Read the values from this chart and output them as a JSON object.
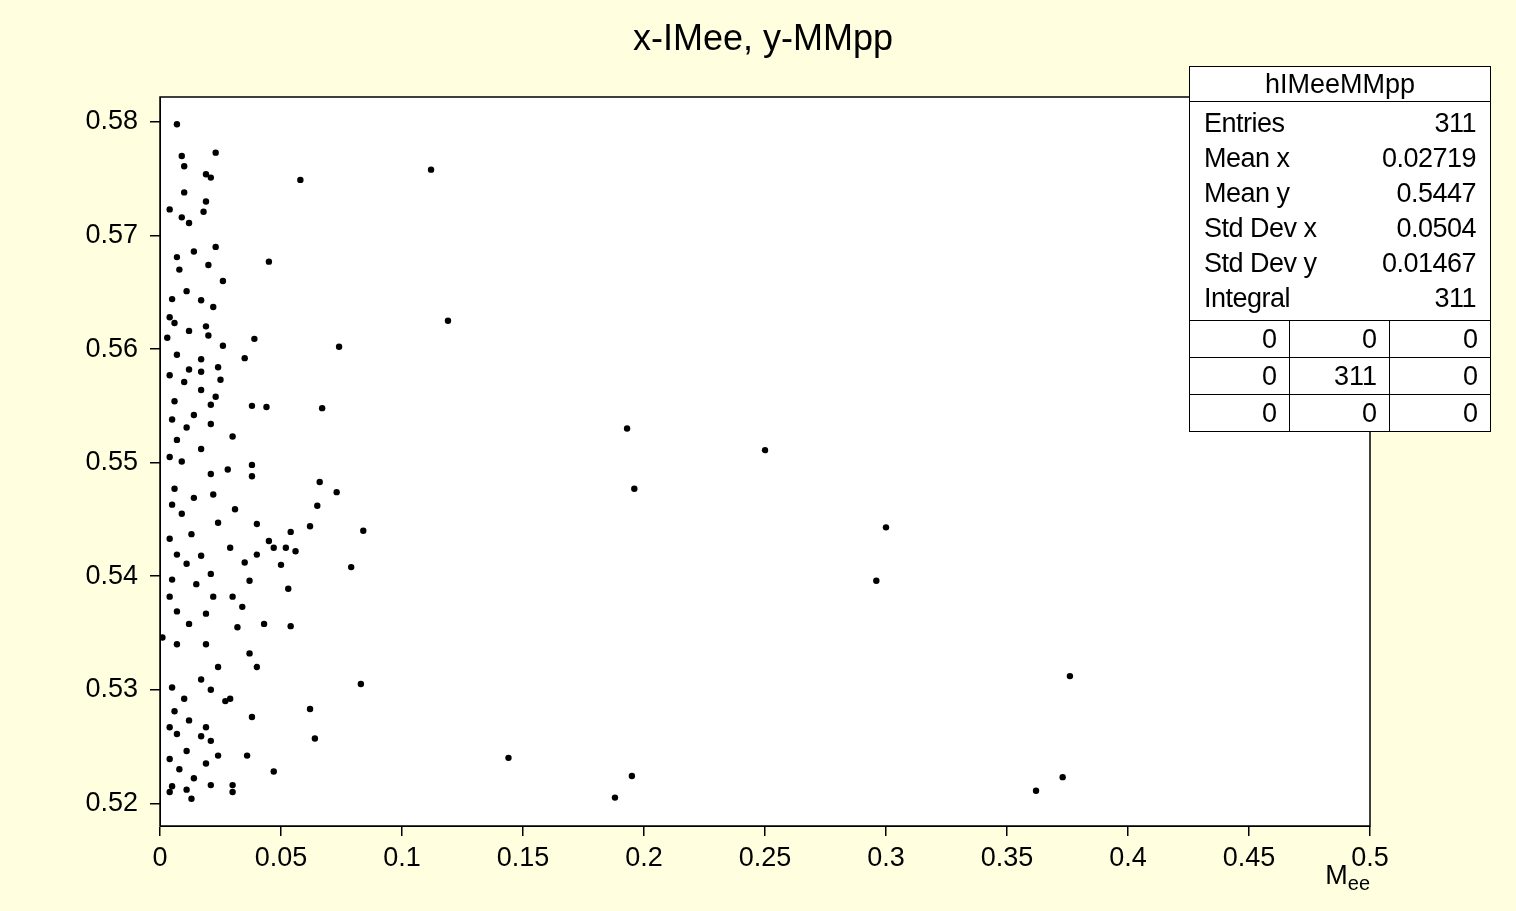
{
  "chart_data": {
    "type": "scatter",
    "title": "x-IMee, y-MMpp",
    "xlabel": "M$_{ee}$",
    "xlim": [
      0,
      0.5
    ],
    "xticks": [
      0,
      0.05,
      0.1,
      0.15,
      0.2,
      0.25,
      0.3,
      0.35,
      0.4,
      0.45,
      0.5
    ],
    "ylim": [
      0.518,
      0.5822
    ],
    "yticks": [
      0.52,
      0.53,
      0.54,
      0.55,
      0.56,
      0.57,
      0.58
    ],
    "grid": false,
    "legend": false,
    "marker": "circle",
    "annotations": [
      "hIMeeMMpp",
      "Entries",
      "311",
      "Mean x",
      "0.02719",
      "Mean y",
      "0.5447",
      "Std Dev x",
      "0.0504",
      "Std Dev y",
      "0.01467",
      "Integral",
      "311",
      "0",
      "0",
      "0",
      "0",
      "311",
      "0",
      "0",
      "0",
      "0"
    ],
    "series": [
      {
        "color": "#000000",
        "x": [
          0.007,
          0.023,
          0.009,
          0.01,
          0.019,
          0.021,
          0.058,
          0.112,
          0.01,
          0.019,
          0.004,
          0.018,
          0.009,
          0.012,
          0.023,
          0.007,
          0.014,
          0.02,
          0.045,
          0.008,
          0.026,
          0.011,
          0.005,
          0.017,
          0.022,
          0.119,
          0.004,
          0.006,
          0.019,
          0.012,
          0.02,
          0.003,
          0.039,
          0.026,
          0.074,
          0.007,
          0.035,
          0.017,
          0.012,
          0.024,
          0.004,
          0.017,
          0.025,
          0.01,
          0.017,
          0.023,
          0.006,
          0.021,
          0.038,
          0.044,
          0.067,
          0.014,
          0.005,
          0.021,
          0.011,
          0.03,
          0.193,
          0.25,
          0.007,
          0.017,
          0.004,
          0.009,
          0.038,
          0.028,
          0.038,
          0.021,
          0.066,
          0.006,
          0.022,
          0.073,
          0.196,
          0.014,
          0.031,
          0.065,
          0.005,
          0.009,
          0.024,
          0.04,
          0.054,
          0.062,
          0.084,
          0.3,
          0.004,
          0.013,
          0.045,
          0.047,
          0.052,
          0.056,
          0.029,
          0.007,
          0.017,
          0.04,
          0.011,
          0.035,
          0.05,
          0.021,
          0.079,
          0.005,
          0.015,
          0.296,
          0.037,
          0.053,
          0.03,
          0.004,
          0.022,
          0.034,
          0.007,
          0.012,
          0.019,
          0.032,
          0.043,
          0.054,
          0.001,
          0.007,
          0.019,
          0.037,
          0.04,
          0.024,
          0.083,
          0.005,
          0.017,
          0.376,
          0.021,
          0.01,
          0.027,
          0.029,
          0.006,
          0.062,
          0.038,
          0.012,
          0.004,
          0.019,
          0.064,
          0.007,
          0.017,
          0.021,
          0.011,
          0.036,
          0.004,
          0.024,
          0.019,
          0.144,
          0.008,
          0.047,
          0.014,
          0.195,
          0.373,
          0.005,
          0.021,
          0.03,
          0.011,
          0.03,
          0.004,
          0.013,
          0.188,
          0.362
        ],
        "values": [
          0.5798,
          0.5773,
          0.577,
          0.5761,
          0.5754,
          0.5751,
          0.5749,
          0.5758,
          0.5738,
          0.573,
          0.5723,
          0.5721,
          0.5716,
          0.5711,
          0.569,
          0.5681,
          0.5686,
          0.5674,
          0.5677,
          0.567,
          0.566,
          0.5651,
          0.5644,
          0.5643,
          0.5637,
          0.5625,
          0.5628,
          0.5623,
          0.562,
          0.5616,
          0.5612,
          0.561,
          0.5609,
          0.5603,
          0.5602,
          0.5595,
          0.5592,
          0.5591,
          0.5582,
          0.5584,
          0.5577,
          0.558,
          0.5573,
          0.5571,
          0.5564,
          0.5558,
          0.5554,
          0.5551,
          0.555,
          0.5549,
          0.5548,
          0.5542,
          0.5538,
          0.5534,
          0.5531,
          0.5523,
          0.553,
          0.5511,
          0.552,
          0.5512,
          0.5505,
          0.5501,
          0.5498,
          0.5494,
          0.5488,
          0.549,
          0.5483,
          0.5477,
          0.5472,
          0.5474,
          0.5477,
          0.5469,
          0.5459,
          0.5462,
          0.5463,
          0.5455,
          0.5447,
          0.5446,
          0.5439,
          0.5444,
          0.544,
          0.5443,
          0.5433,
          0.5437,
          0.5431,
          0.5425,
          0.5425,
          0.5422,
          0.5425,
          0.5419,
          0.5418,
          0.5419,
          0.5411,
          0.5412,
          0.541,
          0.5402,
          0.5408,
          0.5397,
          0.5393,
          0.5396,
          0.5396,
          0.5389,
          0.5382,
          0.5382,
          0.5382,
          0.5373,
          0.5369,
          0.5358,
          0.5367,
          0.5355,
          0.5358,
          0.5356,
          0.5346,
          0.534,
          0.534,
          0.5332,
          0.532,
          0.532,
          0.5305,
          0.5302,
          0.5309,
          0.5312,
          0.53,
          0.5292,
          0.529,
          0.5292,
          0.5281,
          0.5283,
          0.5276,
          0.5273,
          0.5267,
          0.5267,
          0.5257,
          0.5261,
          0.5259,
          0.5255,
          0.5246,
          0.5242,
          0.5239,
          0.5242,
          0.5235,
          0.524,
          0.523,
          0.5228,
          0.5222,
          0.5224,
          0.5223,
          0.5215,
          0.5216,
          0.5216,
          0.5212,
          0.521,
          0.521,
          0.5204,
          0.5205,
          0.5211
        ]
      }
    ]
  }
}
